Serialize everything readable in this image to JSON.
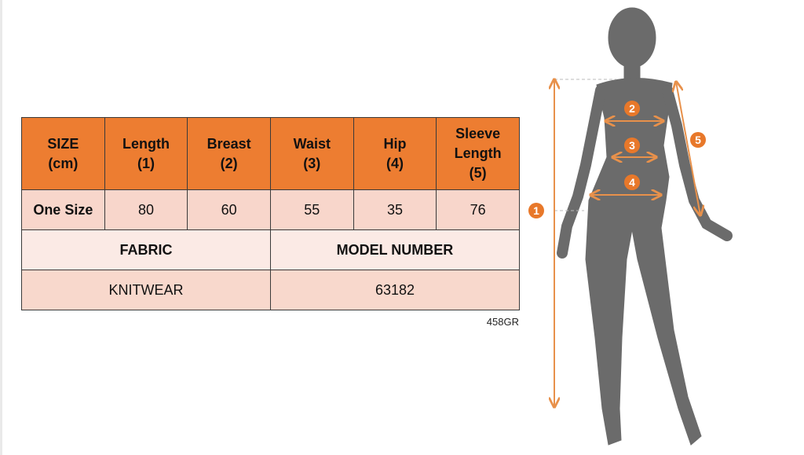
{
  "table": {
    "headers": [
      "SIZE\n(cm)",
      "Length\n(1)",
      "Breast\n(2)",
      "Waist\n(3)",
      "Hip\n(4)",
      "Sleeve\nLength\n(5)"
    ],
    "size_row": {
      "label": "One Size",
      "values": [
        "80",
        "60",
        "55",
        "35",
        "76"
      ]
    },
    "fabric_label": "FABRIC",
    "model_number_label": "MODEL NUMBER",
    "fabric_value": "KNITWEAR",
    "model_number_value": "63182"
  },
  "product_code": "458GR",
  "figure": {
    "markers": [
      "1",
      "2",
      "3",
      "4",
      "5"
    ],
    "colors": {
      "header": "#ED7D31",
      "accent": "#E8914B",
      "marker": "#E8782A",
      "silhouette": "#6B6B6B"
    }
  }
}
